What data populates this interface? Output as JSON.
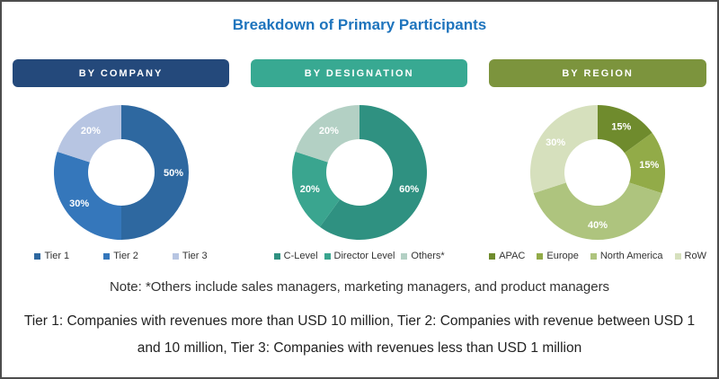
{
  "title": "Breakdown of Primary Participants",
  "title_color": "#1e74bd",
  "note": "Note: *Others include sales managers, marketing managers, and product managers",
  "tier_definitions": [
    "Tier 1: Companies with revenues more than USD 10 million, Tier 2: Companies with revenue between USD 1",
    "and 10 million, Tier 3: Companies with revenues less than USD 1 million"
  ],
  "chart_data": [
    {
      "type": "pie",
      "style": "donut",
      "header": "BY COMPANY",
      "header_color": "#24497b",
      "categories": [
        "Tier 1",
        "Tier 2",
        "Tier 3"
      ],
      "values": [
        50,
        30,
        20
      ],
      "data_labels": [
        "50%",
        "30%",
        "20%"
      ],
      "colors": [
        "#2e68a0",
        "#3577bb",
        "#b7c5e2"
      ],
      "start_angle": 0,
      "direction": "clockwise",
      "legend_position": "bottom"
    },
    {
      "type": "pie",
      "style": "donut",
      "header": "BY DESIGNATION",
      "header_color": "#38a992",
      "categories": [
        "C-Level",
        "Director Level",
        "Others*"
      ],
      "values": [
        60,
        20,
        20
      ],
      "data_labels": [
        "60%",
        "20%",
        "20%"
      ],
      "colors": [
        "#2f9181",
        "#3aa58f",
        "#b3d0c4"
      ],
      "start_angle": 0,
      "direction": "clockwise",
      "legend_position": "bottom"
    },
    {
      "type": "pie",
      "style": "donut",
      "header": "BY REGION",
      "header_color": "#7c943d",
      "categories": [
        "APAC",
        "Europe",
        "North America",
        "RoW"
      ],
      "values": [
        15,
        15,
        40,
        30
      ],
      "data_labels": [
        "15%",
        "15%",
        "40%",
        "30%"
      ],
      "colors": [
        "#6f8b2d",
        "#92ab48",
        "#aec47e",
        "#d6e0bd"
      ],
      "start_angle": 0,
      "direction": "clockwise",
      "legend_position": "bottom"
    }
  ]
}
